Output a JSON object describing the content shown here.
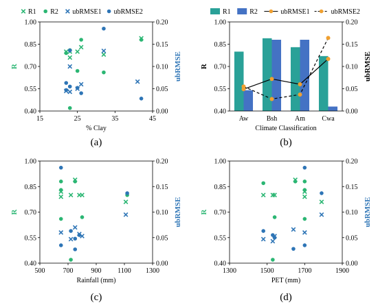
{
  "colors": {
    "green": "#2bb673",
    "blue": "#2e75b6",
    "teal": "#2aa198",
    "navy": "#4472c4",
    "orange": "#f0a030",
    "line": "#000000"
  },
  "chart_data": [
    {
      "id": "a",
      "type": "scatter",
      "panel_label": "(a)",
      "xlabel": "% Clay",
      "ylabel_left": "R",
      "ylabel_right": "ubRMSE",
      "xlim": [
        15,
        45
      ],
      "xticks": [
        "15",
        "25",
        "35",
        "45"
      ],
      "ylim_left": [
        0.4,
        1.0
      ],
      "yticks_left": [
        "0.40",
        "0.55",
        "0.70",
        "0.85",
        "1.00"
      ],
      "ylim_right": [
        0.0,
        0.2
      ],
      "yticks_right": [
        "0.00",
        "0.05",
        "0.10",
        "0.15",
        "0.20"
      ],
      "legend": [
        "R1",
        "R2",
        "ubRMSE1",
        "ubRMSE2"
      ],
      "series": [
        {
          "name": "R1",
          "marker": "x",
          "axis": "left",
          "color": "green",
          "points": [
            [
              22,
              0.8
            ],
            [
              23,
              0.8
            ],
            [
              23,
              0.76
            ],
            [
              25,
              0.8
            ],
            [
              26,
              0.83
            ],
            [
              32,
              0.78
            ],
            [
              42,
              0.89
            ]
          ]
        },
        {
          "name": "R2",
          "marker": "dot",
          "axis": "left",
          "color": "green",
          "points": [
            [
              22,
              0.79
            ],
            [
              23,
              0.81
            ],
            [
              23,
              0.42
            ],
            [
              25,
              0.67
            ],
            [
              26,
              0.88
            ],
            [
              32,
              0.66
            ],
            [
              42,
              0.88
            ]
          ]
        },
        {
          "name": "ubRMSE1",
          "marker": "x",
          "axis": "right",
          "color": "blue",
          "points": [
            [
              22,
              0.045
            ],
            [
              23,
              0.1
            ],
            [
              23,
              0.043
            ],
            [
              25,
              0.05
            ],
            [
              26,
              0.06
            ],
            [
              32,
              0.135
            ],
            [
              41,
              0.066
            ]
          ]
        },
        {
          "name": "ubRMSE2",
          "marker": "dot",
          "axis": "right",
          "color": "blue",
          "points": [
            [
              22,
              0.063
            ],
            [
              22,
              0.047
            ],
            [
              23,
              0.136
            ],
            [
              23,
              0.055
            ],
            [
              25,
              0.052
            ],
            [
              26,
              0.04
            ],
            [
              32,
              0.185
            ],
            [
              42,
              0.028
            ]
          ]
        }
      ]
    },
    {
      "id": "b",
      "type": "bar",
      "panel_label": "(b)",
      "xlabel": "Climate Classification",
      "ylabel_left": "R",
      "ylabel_right": "ubRMSE",
      "categories": [
        "Aw",
        "Bsh",
        "Am",
        "Cwa"
      ],
      "ylim_left": [
        0.4,
        1.0
      ],
      "yticks_left": [
        "0.40",
        "0.55",
        "0.70",
        "0.85",
        "1.00"
      ],
      "ylim_right": [
        0.0,
        0.2
      ],
      "yticks_right": [
        "0.00",
        "0.05",
        "0.10",
        "0.15",
        "0.20"
      ],
      "legend": [
        "R1",
        "R2",
        "ubRMSE1",
        "ubRMSE2"
      ],
      "bars": [
        {
          "name": "R1",
          "color": "teal",
          "values": [
            0.8,
            0.89,
            0.83,
            0.77
          ]
        },
        {
          "name": "R2",
          "color": "navy",
          "values": [
            0.54,
            0.88,
            0.88,
            0.43
          ]
        }
      ],
      "lines": [
        {
          "name": "ubRMSE1",
          "style": "solid",
          "values": [
            0.049,
            0.072,
            0.06,
            0.117
          ]
        },
        {
          "name": "ubRMSE2",
          "style": "dashed",
          "values": [
            0.055,
            0.027,
            0.037,
            0.164
          ]
        }
      ]
    },
    {
      "id": "c",
      "type": "scatter",
      "panel_label": "(c)",
      "xlabel": "Rainfall (mm)",
      "ylabel_left": "R",
      "ylabel_right": "ubRMSE",
      "xlim": [
        500,
        1300
      ],
      "xticks": [
        "500",
        "700",
        "900",
        "1100",
        "1300"
      ],
      "ylim_left": [
        0.4,
        1.0
      ],
      "yticks_left": [
        "0.40",
        "0.55",
        "0.70",
        "0.85",
        "1.00"
      ],
      "ylim_right": [
        0.0,
        0.2
      ],
      "yticks_right": [
        "0.00",
        "0.05",
        "0.10",
        "0.15",
        "0.20"
      ],
      "series": [
        {
          "name": "R1",
          "marker": "x",
          "axis": "left",
          "color": "green",
          "points": [
            [
              650,
              0.82
            ],
            [
              650,
              0.79
            ],
            [
              720,
              0.8
            ],
            [
              750,
              0.89
            ],
            [
              780,
              0.8
            ],
            [
              800,
              0.8
            ],
            [
              1110,
              0.76
            ]
          ]
        },
        {
          "name": "R2",
          "marker": "dot",
          "axis": "left",
          "color": "green",
          "points": [
            [
              650,
              0.83
            ],
            [
              650,
              0.66
            ],
            [
              720,
              0.42
            ],
            [
              750,
              0.88
            ],
            [
              800,
              0.67
            ],
            [
              650,
              0.88
            ],
            [
              1120,
              0.8
            ]
          ]
        },
        {
          "name": "ubRMSE1",
          "marker": "x",
          "axis": "right",
          "color": "blue",
          "points": [
            [
              650,
              0.06
            ],
            [
              720,
              0.047
            ],
            [
              750,
              0.07
            ],
            [
              780,
              0.057
            ],
            [
              800,
              0.053
            ],
            [
              1110,
              0.095
            ]
          ]
        },
        {
          "name": "ubRMSE2",
          "marker": "dot",
          "axis": "right",
          "color": "blue",
          "points": [
            [
              650,
              0.187
            ],
            [
              650,
              0.035
            ],
            [
              720,
              0.063
            ],
            [
              750,
              0.048
            ],
            [
              780,
              0.055
            ],
            [
              750,
              0.027
            ],
            [
              1120,
              0.137
            ]
          ]
        }
      ]
    },
    {
      "id": "d",
      "type": "scatter",
      "panel_label": "(d)",
      "xlabel": "PET (mm)",
      "ylabel_left": "R",
      "ylabel_right": "ubRMSE",
      "xlim": [
        1300,
        1900
      ],
      "xticks": [
        "1300",
        "1500",
        "1700",
        "1900"
      ],
      "ylim_left": [
        0.4,
        1.0
      ],
      "yticks_left": [
        "0.40",
        "0.55",
        "0.70",
        "0.85",
        "1.00"
      ],
      "ylim_right": [
        0.0,
        0.2
      ],
      "yticks_right": [
        "0.00",
        "0.05",
        "0.10",
        "0.15",
        "0.20"
      ],
      "series": [
        {
          "name": "R1",
          "marker": "x",
          "axis": "left",
          "color": "green",
          "points": [
            [
              1480,
              0.8
            ],
            [
              1530,
              0.8
            ],
            [
              1540,
              0.8
            ],
            [
              1650,
              0.89
            ],
            [
              1700,
              0.82
            ],
            [
              1700,
              0.79
            ],
            [
              1790,
              0.76
            ]
          ]
        },
        {
          "name": "R2",
          "marker": "dot",
          "axis": "left",
          "color": "green",
          "points": [
            [
              1530,
              0.42
            ],
            [
              1540,
              0.67
            ],
            [
              1650,
              0.88
            ],
            [
              1700,
              0.66
            ],
            [
              1700,
              0.83
            ],
            [
              1700,
              0.88
            ],
            [
              1480,
              0.87
            ]
          ]
        },
        {
          "name": "ubRMSE1",
          "marker": "x",
          "axis": "right",
          "color": "blue",
          "points": [
            [
              1480,
              0.047
            ],
            [
              1530,
              0.043
            ],
            [
              1540,
              0.053
            ],
            [
              1640,
              0.066
            ],
            [
              1700,
              0.06
            ],
            [
              1790,
              0.095
            ]
          ]
        },
        {
          "name": "ubRMSE2",
          "marker": "dot",
          "axis": "right",
          "color": "blue",
          "points": [
            [
              1480,
              0.063
            ],
            [
              1530,
              0.055
            ],
            [
              1540,
              0.05
            ],
            [
              1640,
              0.028
            ],
            [
              1700,
              0.035
            ],
            [
              1700,
              0.187
            ],
            [
              1790,
              0.137
            ]
          ]
        }
      ]
    }
  ]
}
